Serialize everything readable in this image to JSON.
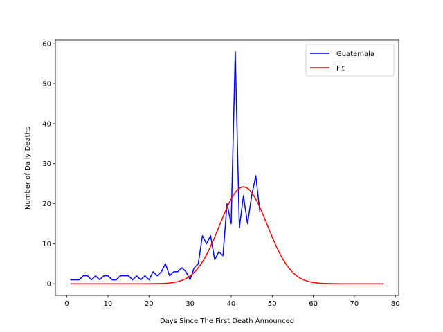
{
  "chart_data": {
    "type": "line",
    "title": "",
    "xlabel": "Days Since The First Death Announced",
    "ylabel": "Number of Daily Deaths",
    "xlim": [
      -2.8,
      80.8
    ],
    "ylim": [
      -2.9,
      60.9
    ],
    "xticks": [
      0,
      10,
      20,
      30,
      40,
      50,
      60,
      70,
      80
    ],
    "yticks": [
      0,
      10,
      20,
      30,
      40,
      50,
      60
    ],
    "grid": false,
    "legend": "top-right",
    "series": [
      {
        "name": "Guatemala",
        "color": "#0000ff",
        "x": [
          1,
          2,
          3,
          4,
          5,
          6,
          7,
          8,
          9,
          10,
          11,
          12,
          13,
          14,
          15,
          16,
          17,
          18,
          19,
          20,
          21,
          22,
          23,
          24,
          25,
          26,
          27,
          28,
          29,
          30,
          31,
          32,
          33,
          34,
          35,
          36,
          37,
          38,
          39,
          40,
          41,
          42,
          43,
          44,
          45,
          46,
          47
        ],
        "y": [
          1,
          1,
          1,
          2,
          2,
          1,
          2,
          1,
          2,
          2,
          1,
          1,
          2,
          2,
          2,
          1,
          2,
          1,
          2,
          1,
          3,
          2,
          3,
          5,
          2,
          3,
          3,
          4,
          3,
          1,
          4,
          5,
          12,
          10,
          12,
          6,
          8,
          7,
          20,
          15,
          58,
          14,
          22,
          15,
          22,
          27,
          18
        ]
      },
      {
        "name": "Fit",
        "color": "#ff0000",
        "model": "gaussian",
        "x_start": 1,
        "x_end": 77,
        "amplitude": 24.2,
        "center": 43.0,
        "sigma": 5.8
      }
    ]
  }
}
